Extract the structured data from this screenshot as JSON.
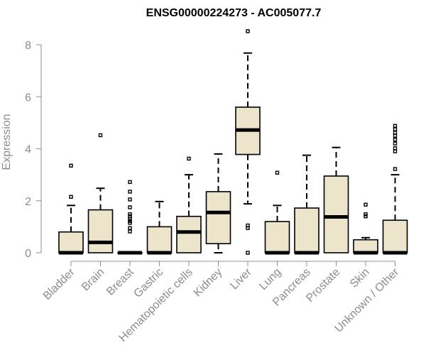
{
  "chart_data": {
    "type": "boxplot",
    "title": "ENSG00000224273 - AC005077.7",
    "xlabel": "",
    "ylabel": "Expression",
    "ylim": [
      0,
      8
    ],
    "yticks": [
      "0",
      "2",
      "4",
      "6",
      "8"
    ],
    "grid": false,
    "legend": "none",
    "box_fill": "#ede4cc",
    "categories": [
      "Bladder",
      "Brain",
      "Breast",
      "Gastric",
      "Hematopoietic cells",
      "Kidney",
      "Liver",
      "Lung",
      "Pancreas",
      "Prostate",
      "Skin",
      "Unknown / Other"
    ],
    "boxes": [
      {
        "q1": 0,
        "median": 0,
        "q3": 0.8,
        "whisker_low": 0,
        "whisker_high": 1.82,
        "outliers": [
          2.15,
          3.35
        ]
      },
      {
        "q1": 0,
        "median": 0.4,
        "q3": 1.65,
        "whisker_low": 0,
        "whisker_high": 2.48,
        "outliers": [
          4.52
        ]
      },
      {
        "q1": 0,
        "median": 0,
        "q3": 0,
        "whisker_low": 0,
        "whisker_high": 0,
        "outliers": [
          0.82,
          0.95,
          1.15,
          1.22,
          1.3,
          1.4,
          1.48,
          1.75,
          2.05,
          2.35,
          2.72
        ]
      },
      {
        "q1": 0,
        "median": 0,
        "q3": 1.0,
        "whisker_low": 0,
        "whisker_high": 1.97,
        "outliers": []
      },
      {
        "q1": 0,
        "median": 0.8,
        "q3": 1.4,
        "whisker_low": 0,
        "whisker_high": 3.0,
        "outliers": [
          3.62
        ]
      },
      {
        "q1": 0.35,
        "median": 1.55,
        "q3": 2.35,
        "whisker_low": 0,
        "whisker_high": 3.8,
        "outliers": []
      },
      {
        "q1": 3.78,
        "median": 4.72,
        "q3": 5.6,
        "whisker_low": 1.88,
        "whisker_high": 7.68,
        "outliers": [
          0.0,
          0.95,
          1.05,
          8.52
        ]
      },
      {
        "q1": 0,
        "median": 0,
        "q3": 1.2,
        "whisker_low": 0,
        "whisker_high": 1.82,
        "outliers": [
          3.08
        ]
      },
      {
        "q1": 0,
        "median": 0,
        "q3": 1.72,
        "whisker_low": 0,
        "whisker_high": 3.75,
        "outliers": []
      },
      {
        "q1": 0,
        "median": 1.38,
        "q3": 2.95,
        "whisker_low": 0,
        "whisker_high": 4.05,
        "outliers": []
      },
      {
        "q1": 0,
        "median": 0,
        "q3": 0.5,
        "whisker_low": 0,
        "whisker_high": 0.58,
        "outliers": [
          1.4,
          1.48,
          1.85
        ]
      },
      {
        "q1": 0,
        "median": 0,
        "q3": 1.25,
        "whisker_low": 0,
        "whisker_high": 3.0,
        "outliers": [
          3.22,
          3.9,
          4.02,
          4.2,
          4.35,
          4.5,
          4.62,
          4.75,
          4.88
        ]
      }
    ]
  }
}
